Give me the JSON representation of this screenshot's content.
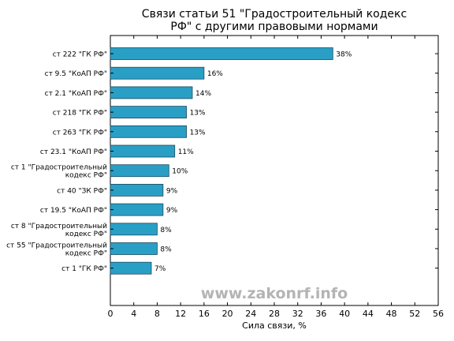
{
  "chart_data": {
    "type": "bar",
    "orientation": "horizontal",
    "title_lines": [
      "Связи статьи 51 \"Градостроительный кодекс",
      "РФ\" с другими правовыми нормами"
    ],
    "xlabel": "Сила связи, %",
    "ylabel": "",
    "xlim": [
      0,
      56
    ],
    "x_ticks": [
      0,
      4,
      8,
      12,
      16,
      20,
      24,
      28,
      32,
      36,
      40,
      44,
      48,
      52,
      56
    ],
    "grid": false,
    "bar_color": "#2a9fc6",
    "bar_edge_color": "#1a4a5e",
    "watermark": "www.zakonrf.info",
    "categories": [
      [
        "ст 222 \"ГК РФ\""
      ],
      [
        "ст 9.5 \"КоАП РФ\""
      ],
      [
        "ст 2.1 \"КоАП РФ\""
      ],
      [
        "ст 218 \"ГК РФ\""
      ],
      [
        "ст 263 \"ГК РФ\""
      ],
      [
        "ст 23.1 \"КоАП РФ\""
      ],
      [
        "ст 1 \"Градостроительный",
        "кодекс РФ\""
      ],
      [
        "ст 40 \"ЗК РФ\""
      ],
      [
        "ст 19.5 \"КоАП РФ\""
      ],
      [
        "ст 8 \"Градостроительный",
        "кодекс РФ\""
      ],
      [
        "ст 55 \"Градостроительный",
        "кодекс РФ\""
      ],
      [
        "ст 1 \"ГК РФ\""
      ]
    ],
    "values": [
      38,
      16,
      14,
      13,
      13,
      11,
      10,
      9,
      9,
      8,
      8,
      7
    ],
    "value_labels": [
      "38%",
      "16%",
      "14%",
      "13%",
      "13%",
      "11%",
      "10%",
      "9%",
      "9%",
      "8%",
      "8%",
      "7%"
    ]
  }
}
